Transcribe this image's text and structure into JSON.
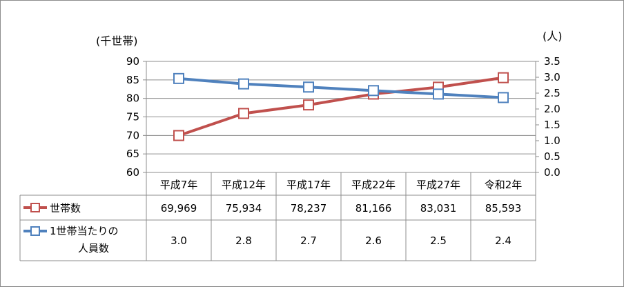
{
  "chart_data": {
    "type": "line",
    "categories": [
      "平成7年",
      "平成12年",
      "平成17年",
      "平成22年",
      "平成27年",
      "令和2年"
    ],
    "left_axis": {
      "label": "(千世帯)",
      "ylim": [
        60,
        90
      ],
      "ticks": [
        "60",
        "65",
        "70",
        "75",
        "80",
        "85",
        "90"
      ]
    },
    "right_axis": {
      "label": "(人)",
      "ylim": [
        0.0,
        3.5
      ],
      "ticks": [
        "0.0",
        "0.5",
        "1.0",
        "1.5",
        "2.0",
        "2.5",
        "3.0",
        "3.5"
      ]
    },
    "series": [
      {
        "name": "世帯数",
        "axis": "left",
        "color": "#c0504d",
        "values": [
          69.969,
          75.934,
          78.237,
          81.166,
          83.031,
          85.593
        ],
        "table_values": [
          "69,969",
          "75,934",
          "78,237",
          "81,166",
          "83,031",
          "85,593"
        ]
      },
      {
        "name": "1世帯当たりの人員数",
        "name_lines": [
          "1世帯当たりの",
          "人員数"
        ],
        "axis": "right",
        "color": "#4f81bd",
        "values": [
          2.96,
          2.79,
          2.69,
          2.58,
          2.47,
          2.36
        ],
        "table_values": [
          "3.0",
          "2.8",
          "2.7",
          "2.6",
          "2.5",
          "2.4"
        ]
      }
    ],
    "grid": true,
    "legend": "data-table"
  }
}
